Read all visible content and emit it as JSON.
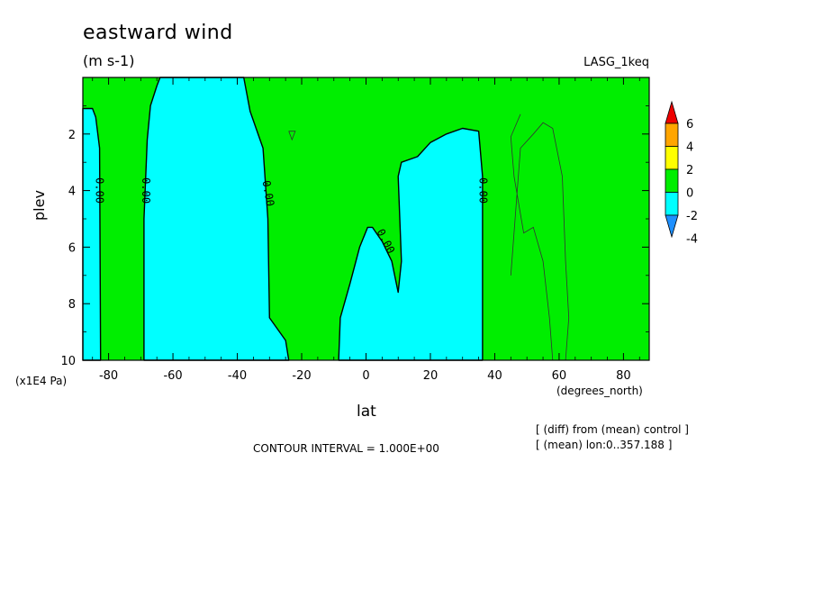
{
  "header": {
    "title": "eastward wind",
    "units": "(m s-1)",
    "experiment": "LASG_1keq"
  },
  "footer": {
    "contour_interval": "CONTOUR INTERVAL = 1.000E+00",
    "note_diff": "[ (diff) from (mean) control ]",
    "note_mean": "[ (mean) lon:0..357.188 ]"
  },
  "chart_data": {
    "type": "heatmap",
    "subtype": "filled-contour",
    "title": "eastward wind",
    "units": "(m s-1)",
    "xlabel": "lat",
    "x_units": "(degrees_north)",
    "ylabel": "plev",
    "y_units": "(x1E4 Pa)",
    "xlim": [
      -88,
      88
    ],
    "ylim": [
      10,
      0
    ],
    "y_inverted": true,
    "x_ticks": [
      -80,
      -60,
      -40,
      -20,
      0,
      20,
      40,
      60,
      80
    ],
    "x_tick_labels": [
      "-80",
      "-60",
      "-40",
      "-20",
      "0",
      "20",
      "40",
      "60",
      "80"
    ],
    "y_ticks": [
      2,
      4,
      6,
      8,
      10
    ],
    "y_tick_labels": [
      "2",
      "4",
      "6",
      "8",
      "10"
    ],
    "contour_label": "0.00",
    "contour_interval": 1.0,
    "colorbar": {
      "levels": [
        -4,
        -2,
        0,
        2,
        4,
        6
      ],
      "tick_labels": [
        "6",
        "4",
        "2",
        "0",
        "-2",
        "-4"
      ],
      "colors": [
        "#1e90ff",
        "#00ffff",
        "#00ee00",
        "#ffff00",
        "#ffa500",
        "#ee0000"
      ],
      "extend": "both"
    },
    "background_color": "#00ee00",
    "negative_color": "#00ffff",
    "negative_regions": [
      {
        "name": "south-polar",
        "boundary": [
          [
            -88,
            1.1
          ],
          [
            -85,
            1.1
          ],
          [
            -84,
            1.4
          ],
          [
            -82.8,
            2.5
          ],
          [
            -82.5,
            10
          ],
          [
            -88,
            10
          ]
        ]
      },
      {
        "name": "southern-midlat",
        "boundary": [
          [
            -64,
            0
          ],
          [
            -38,
            0
          ],
          [
            -36,
            1.2
          ],
          [
            -32,
            2.5
          ],
          [
            -30.5,
            5
          ],
          [
            -30,
            8.5
          ],
          [
            -25,
            9.3
          ],
          [
            -24,
            10
          ],
          [
            -69,
            10
          ],
          [
            -69,
            5
          ],
          [
            -68,
            2.2
          ],
          [
            -67,
            1
          ],
          [
            -65,
            0.3
          ]
        ]
      },
      {
        "name": "tropical",
        "boundary": [
          [
            36.2,
            10
          ],
          [
            -8.5,
            10
          ],
          [
            -8,
            8.5
          ],
          [
            -5,
            7.3
          ],
          [
            -2,
            6
          ],
          [
            0.5,
            5.3
          ],
          [
            2,
            5.3
          ],
          [
            5,
            5.8
          ],
          [
            8,
            6.5
          ],
          [
            10,
            7.6
          ],
          [
            11,
            6.5
          ],
          [
            10,
            3.5
          ],
          [
            11,
            3.0
          ],
          [
            16,
            2.8
          ],
          [
            20,
            2.3
          ],
          [
            25,
            2.0
          ],
          [
            30,
            1.8
          ],
          [
            35,
            1.9
          ],
          [
            36.2,
            3.5
          ]
        ]
      }
    ],
    "thin_contours": [
      {
        "name": "positive-loop",
        "points": [
          [
            45,
            7
          ],
          [
            48,
            2.5
          ],
          [
            52,
            2
          ],
          [
            55,
            1.6
          ],
          [
            58,
            1.8
          ],
          [
            61,
            3.5
          ],
          [
            62,
            6.5
          ],
          [
            63,
            8.5
          ],
          [
            62,
            10
          ],
          [
            58,
            10
          ],
          [
            57,
            8.5
          ],
          [
            55,
            6.5
          ],
          [
            52,
            5.3
          ],
          [
            49,
            5.5
          ],
          [
            46,
            3.5
          ],
          [
            45,
            2.1
          ],
          [
            48,
            1.3
          ]
        ]
      },
      {
        "name": "small-closed",
        "points": [
          [
            -24,
            1.9
          ],
          [
            -22,
            1.9
          ],
          [
            -23,
            2.2
          ],
          [
            -24,
            1.9
          ]
        ]
      }
    ],
    "contour_label_points": [
      {
        "x": -83,
        "y": 4.0,
        "rotate": 90
      },
      {
        "x": -68.5,
        "y": 4.0,
        "rotate": 90
      },
      {
        "x": -30.5,
        "y": 4.1,
        "rotate": 80
      },
      {
        "x": 6,
        "y": 5.8,
        "rotate": 63
      },
      {
        "x": 36.2,
        "y": 4.0,
        "rotate": 90
      }
    ]
  }
}
